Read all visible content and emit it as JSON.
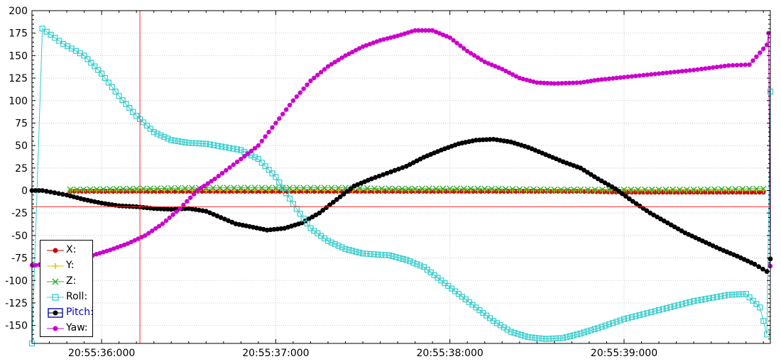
{
  "chart_data": {
    "type": "line",
    "title": "",
    "xlabel": "",
    "ylabel": "",
    "x_ticks": [
      "20:55:36:000",
      "20:55:37:000",
      "20:55:38:000",
      "20:55:39:000"
    ],
    "x_tick_values": [
      36.0,
      37.0,
      38.0,
      39.0
    ],
    "xlim": [
      35.6,
      39.84
    ],
    "ylim": [
      -170,
      200
    ],
    "y_ticks": [
      200,
      175,
      150,
      125,
      100,
      75,
      50,
      25,
      0,
      -25,
      -50,
      -75,
      -100,
      -125,
      -150
    ],
    "grid": true,
    "legend_position": "bottom-left",
    "cursor": {
      "x": 36.22,
      "y": -18
    },
    "series": [
      {
        "name": "X:",
        "color": "#cc0000",
        "marker": "circle",
        "points": [
          [
            35.82,
            -1
          ],
          [
            36.2,
            -1
          ],
          [
            36.6,
            -1
          ],
          [
            37.0,
            -1
          ],
          [
            37.4,
            -1
          ],
          [
            37.65,
            -1
          ],
          [
            37.8,
            -1
          ],
          [
            38.2,
            -1
          ],
          [
            38.6,
            -1
          ],
          [
            38.75,
            -1
          ],
          [
            39.0,
            -2
          ],
          [
            39.4,
            -2
          ],
          [
            39.8,
            -2
          ]
        ]
      },
      {
        "name": "Y:",
        "color": "#e6c000",
        "marker": "plus",
        "points": [
          [
            35.82,
            0
          ],
          [
            36.2,
            0
          ],
          [
            36.6,
            0
          ],
          [
            37.0,
            0
          ],
          [
            37.4,
            0
          ],
          [
            37.65,
            0
          ],
          [
            37.8,
            0
          ],
          [
            38.2,
            0
          ],
          [
            38.6,
            0
          ],
          [
            38.75,
            0
          ],
          [
            39.0,
            0
          ],
          [
            39.4,
            0
          ],
          [
            39.8,
            0
          ]
        ]
      },
      {
        "name": "Z:",
        "color": "#33aa33",
        "marker": "x",
        "points": [
          [
            35.82,
            1
          ],
          [
            36.2,
            2
          ],
          [
            36.6,
            3
          ],
          [
            37.0,
            3
          ],
          [
            37.4,
            3
          ],
          [
            37.65,
            2
          ],
          [
            37.8,
            2
          ],
          [
            38.2,
            2
          ],
          [
            38.6,
            1
          ],
          [
            38.75,
            1
          ],
          [
            39.0,
            1
          ],
          [
            39.4,
            1
          ],
          [
            39.8,
            2
          ]
        ]
      },
      {
        "name": "Roll:",
        "color": "#33cccc",
        "marker": "square",
        "points": [
          [
            35.6,
            -170
          ],
          [
            35.66,
            180
          ],
          [
            35.78,
            163
          ],
          [
            35.9,
            150
          ],
          [
            36.0,
            130
          ],
          [
            36.1,
            105
          ],
          [
            36.2,
            83
          ],
          [
            36.3,
            65
          ],
          [
            36.4,
            56
          ],
          [
            36.5,
            53
          ],
          [
            36.6,
            52
          ],
          [
            36.8,
            45
          ],
          [
            36.9,
            35
          ],
          [
            37.0,
            15
          ],
          [
            37.1,
            -15
          ],
          [
            37.2,
            -42
          ],
          [
            37.3,
            -56
          ],
          [
            37.4,
            -65
          ],
          [
            37.5,
            -70
          ],
          [
            37.65,
            -72
          ],
          [
            37.75,
            -77
          ],
          [
            37.85,
            -85
          ],
          [
            37.95,
            -100
          ],
          [
            38.05,
            -115
          ],
          [
            38.15,
            -130
          ],
          [
            38.25,
            -145
          ],
          [
            38.35,
            -157
          ],
          [
            38.45,
            -163
          ],
          [
            38.55,
            -165
          ],
          [
            38.65,
            -164
          ],
          [
            38.75,
            -159
          ],
          [
            38.85,
            -153
          ],
          [
            39.0,
            -143
          ],
          [
            39.2,
            -133
          ],
          [
            39.4,
            -123
          ],
          [
            39.6,
            -116
          ],
          [
            39.7,
            -115
          ],
          [
            39.78,
            -130
          ],
          [
            39.82,
            -160
          ],
          [
            39.84,
            110
          ]
        ]
      },
      {
        "name": "Pitch:",
        "color": "#000000",
        "marker": "dot",
        "points": [
          [
            35.6,
            0
          ],
          [
            35.66,
            0
          ],
          [
            35.8,
            -5
          ],
          [
            35.9,
            -10
          ],
          [
            36.0,
            -14
          ],
          [
            36.1,
            -17
          ],
          [
            36.2,
            -18
          ],
          [
            36.3,
            -20
          ],
          [
            36.4,
            -21
          ],
          [
            36.5,
            -20
          ],
          [
            36.6,
            -23
          ],
          [
            36.77,
            -37
          ],
          [
            36.85,
            -40
          ],
          [
            36.95,
            -44
          ],
          [
            37.05,
            -42
          ],
          [
            37.15,
            -36
          ],
          [
            37.25,
            -25
          ],
          [
            37.35,
            -10
          ],
          [
            37.45,
            5
          ],
          [
            37.55,
            13
          ],
          [
            37.75,
            27
          ],
          [
            37.85,
            37
          ],
          [
            37.95,
            45
          ],
          [
            38.05,
            52
          ],
          [
            38.15,
            56
          ],
          [
            38.25,
            57
          ],
          [
            38.35,
            54
          ],
          [
            38.45,
            48
          ],
          [
            38.55,
            40
          ],
          [
            38.65,
            32
          ],
          [
            38.75,
            25
          ],
          [
            38.85,
            13
          ],
          [
            38.95,
            2
          ],
          [
            39.05,
            -12
          ],
          [
            39.15,
            -25
          ],
          [
            39.25,
            -36
          ],
          [
            39.35,
            -47
          ],
          [
            39.45,
            -56
          ],
          [
            39.55,
            -65
          ],
          [
            39.65,
            -73
          ],
          [
            39.75,
            -82
          ],
          [
            39.82,
            -90
          ],
          [
            39.84,
            -76
          ]
        ]
      },
      {
        "name": "Yaw:",
        "color": "#cc00cc",
        "marker": "circle",
        "points": [
          [
            35.6,
            -83
          ],
          [
            35.62,
            -83
          ],
          [
            35.85,
            -77
          ],
          [
            35.95,
            -72
          ],
          [
            36.05,
            -66
          ],
          [
            36.15,
            -59
          ],
          [
            36.25,
            -50
          ],
          [
            36.35,
            -37
          ],
          [
            36.45,
            -20
          ],
          [
            36.55,
            0
          ],
          [
            36.65,
            13
          ],
          [
            36.8,
            35
          ],
          [
            36.9,
            50
          ],
          [
            37.0,
            75
          ],
          [
            37.1,
            100
          ],
          [
            37.2,
            122
          ],
          [
            37.3,
            138
          ],
          [
            37.4,
            150
          ],
          [
            37.5,
            160
          ],
          [
            37.6,
            167
          ],
          [
            37.7,
            172
          ],
          [
            37.8,
            178
          ],
          [
            37.9,
            178
          ],
          [
            38.0,
            170
          ],
          [
            38.1,
            155
          ],
          [
            38.2,
            143
          ],
          [
            38.3,
            135
          ],
          [
            38.4,
            125
          ],
          [
            38.5,
            120
          ],
          [
            38.6,
            119
          ],
          [
            38.75,
            120
          ],
          [
            38.85,
            123
          ],
          [
            39.0,
            126
          ],
          [
            39.2,
            130
          ],
          [
            39.4,
            134
          ],
          [
            39.6,
            139
          ],
          [
            39.72,
            140
          ],
          [
            39.82,
            162
          ],
          [
            39.83,
            175
          ],
          [
            39.84,
            -84
          ]
        ]
      }
    ]
  }
}
